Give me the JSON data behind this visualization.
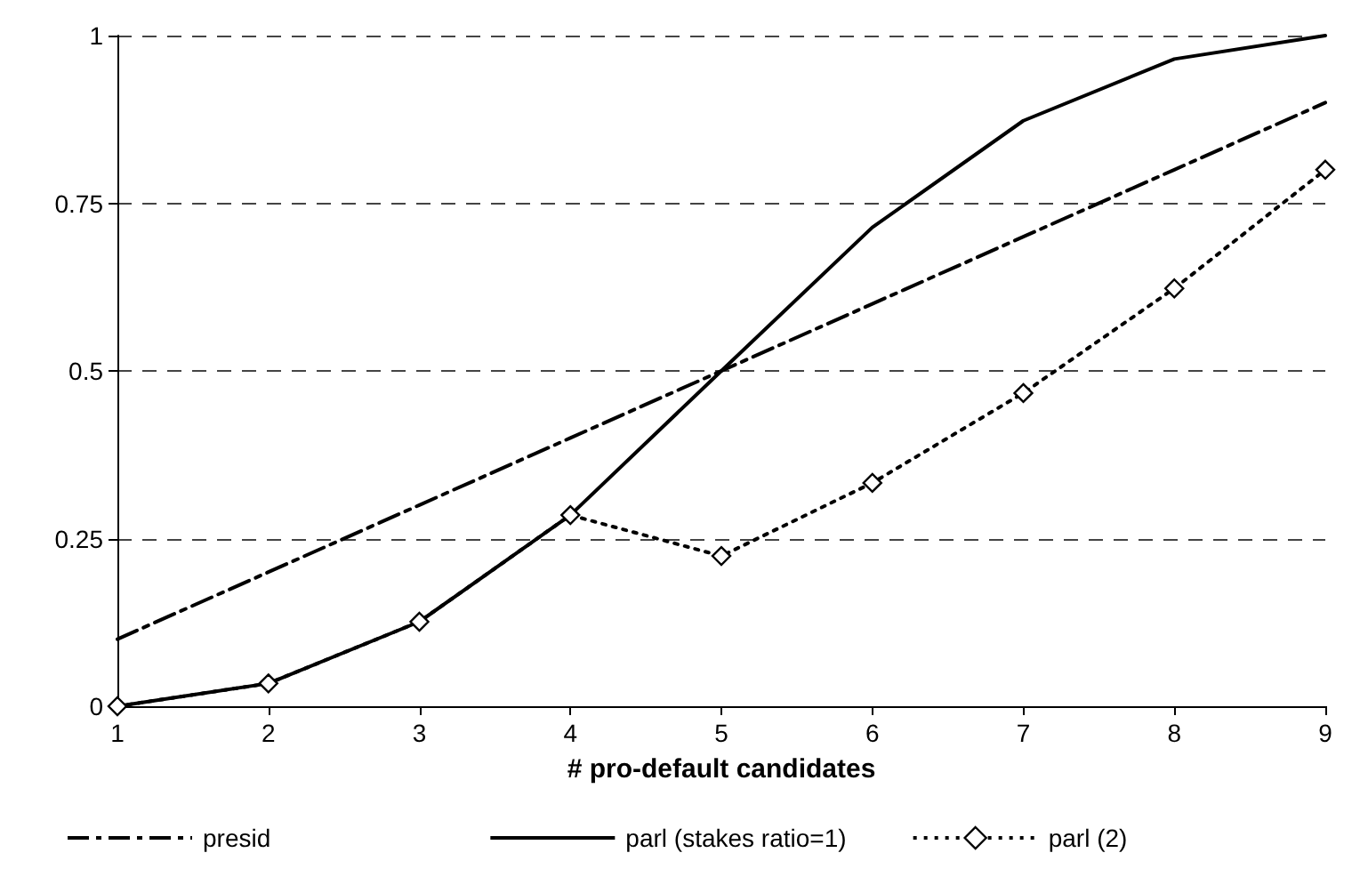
{
  "chart_data": {
    "type": "line",
    "xlabel": "# pro-default candidates",
    "x": [
      1,
      2,
      3,
      4,
      5,
      6,
      7,
      8,
      9
    ],
    "xlim": [
      1,
      9
    ],
    "xticks": [
      1,
      2,
      3,
      4,
      5,
      6,
      7,
      8,
      9
    ],
    "ylim": [
      0,
      1
    ],
    "yticks": [
      0,
      0.25,
      0.5,
      0.75,
      1
    ],
    "grid": "y",
    "legend": "bottom",
    "series": [
      {
        "name": "presid",
        "color": "#000000",
        "line_style": "dashdot",
        "marker": "none",
        "values": [
          0.1,
          0.2,
          0.3,
          0.4,
          0.5,
          0.6,
          0.7,
          0.8,
          0.9
        ]
      },
      {
        "name": "parl (stakes ratio=1)",
        "color": "#000000",
        "line_style": "solid",
        "marker": "none",
        "values": [
          0,
          0.034,
          0.126,
          0.285,
          0.5,
          0.714,
          0.873,
          0.965,
          1
        ]
      },
      {
        "name": "parl (2)",
        "color": "#000000",
        "line_style": "dotted",
        "marker": "diamond",
        "values": [
          0,
          0.034,
          0.126,
          0.285,
          0.224,
          0.333,
          0.467,
          0.623,
          0.8
        ]
      }
    ]
  }
}
